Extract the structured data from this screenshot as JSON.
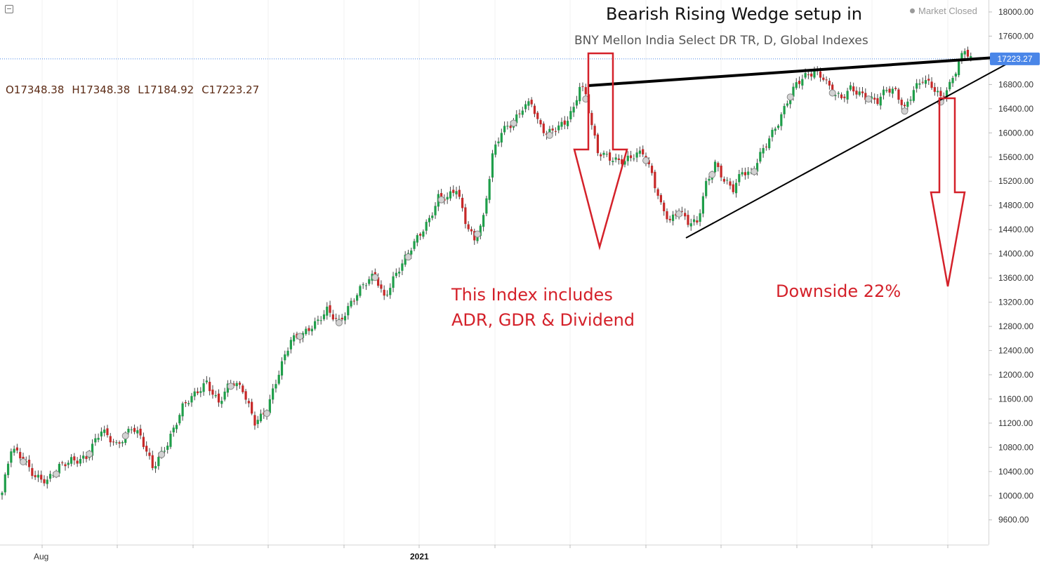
{
  "header": {
    "title": "Bearish Rising Wedge setup in",
    "subtitle": "BNY Mellon India Select DR TR, D, Global Indexes",
    "market_status": "Market Closed"
  },
  "ohlc": {
    "open": "O17348.38",
    "high": "H17348.38",
    "low": "L17184.92",
    "close": "C17223.27"
  },
  "price_label": "17223.27",
  "annotations": {
    "index_note": [
      "This Index includes",
      "ADR, GDR & Dividend"
    ],
    "downside": "Downside 22%"
  },
  "colors": {
    "up": "#1f9e4a",
    "down": "#c62828",
    "annotation": "#d4212a",
    "last_price": "#4a86e8"
  },
  "chart_data": {
    "type": "candlestick",
    "title": "Bearish Rising Wedge setup in",
    "subtitle": "BNY Mellon India Select DR TR, D, Global Indexes",
    "x_tick_labels": [
      "Aug",
      "2021"
    ],
    "y_ticks": [
      9600,
      10000,
      10400,
      10800,
      11200,
      11600,
      12000,
      12400,
      12800,
      13200,
      13600,
      14000,
      14400,
      14800,
      15200,
      15600,
      16000,
      16400,
      16800,
      17200,
      17600,
      18000
    ],
    "y_tick_labels": [
      "9600.00",
      "10000.00",
      "10400.00",
      "10800.00",
      "11200.00",
      "11600.00",
      "12000.00",
      "12400.00",
      "12800.00",
      "13200.00",
      "13600.00",
      "14000.00",
      "14400.00",
      "14800.00",
      "15200.00",
      "15600.00",
      "16000.00",
      "16400.00",
      "16800.00",
      "17200.00",
      "17600.00",
      "18000.00"
    ],
    "ylim": [
      9300,
      18180
    ],
    "last_price": 17223.27,
    "price_path": [
      [
        0,
        10050
      ],
      [
        3,
        10750
      ],
      [
        7,
        10600
      ],
      [
        11,
        10350
      ],
      [
        15,
        10240
      ],
      [
        19,
        10450
      ],
      [
        23,
        10600
      ],
      [
        28,
        10650
      ],
      [
        33,
        11050
      ],
      [
        38,
        10850
      ],
      [
        43,
        11150
      ],
      [
        46,
        10950
      ],
      [
        50,
        10450
      ],
      [
        55,
        10900
      ],
      [
        60,
        11450
      ],
      [
        64,
        11650
      ],
      [
        68,
        11900
      ],
      [
        72,
        11550
      ],
      [
        76,
        11850
      ],
      [
        80,
        11750
      ],
      [
        84,
        11250
      ],
      [
        88,
        11400
      ],
      [
        92,
        12000
      ],
      [
        96,
        12600
      ],
      [
        100,
        12700
      ],
      [
        105,
        12850
      ],
      [
        108,
        13050
      ],
      [
        112,
        12900
      ],
      [
        116,
        13200
      ],
      [
        120,
        13450
      ],
      [
        124,
        13650
      ],
      [
        127,
        13300
      ],
      [
        130,
        13600
      ],
      [
        134,
        13900
      ],
      [
        138,
        14250
      ],
      [
        142,
        14600
      ],
      [
        145,
        14950
      ],
      [
        148,
        14900
      ],
      [
        151,
        15050
      ],
      [
        154,
        14550
      ],
      [
        157,
        14250
      ],
      [
        160,
        14600
      ],
      [
        163,
        15600
      ],
      [
        166,
        16000
      ],
      [
        170,
        16200
      ],
      [
        173,
        16450
      ],
      [
        176,
        16500
      ],
      [
        178,
        16150
      ],
      [
        181,
        15950
      ],
      [
        184,
        16100
      ],
      [
        187,
        16200
      ],
      [
        190,
        16400
      ],
      [
        192,
        16750
      ],
      [
        194,
        16600
      ],
      [
        196,
        16100
      ],
      [
        198,
        15700
      ],
      [
        201,
        15650
      ],
      [
        204,
        15550
      ],
      [
        207,
        15500
      ],
      [
        210,
        15600
      ],
      [
        213,
        15700
      ],
      [
        216,
        15350
      ],
      [
        219,
        14800
      ],
      [
        222,
        14500
      ],
      [
        225,
        14700
      ],
      [
        228,
        14550
      ],
      [
        231,
        14550
      ],
      [
        234,
        15150
      ],
      [
        237,
        15450
      ],
      [
        240,
        15200
      ],
      [
        243,
        15100
      ],
      [
        246,
        15400
      ],
      [
        249,
        15300
      ],
      [
        252,
        15600
      ],
      [
        255,
        15900
      ],
      [
        258,
        16200
      ],
      [
        261,
        16550
      ],
      [
        264,
        16800
      ],
      [
        267,
        16900
      ],
      [
        270,
        17000
      ],
      [
        273,
        16950
      ],
      [
        276,
        16700
      ],
      [
        279,
        16550
      ],
      [
        282,
        16700
      ],
      [
        285,
        16650
      ],
      [
        288,
        16600
      ],
      [
        291,
        16550
      ],
      [
        294,
        16700
      ],
      [
        297,
        16650
      ],
      [
        300,
        16400
      ],
      [
        303,
        16750
      ],
      [
        306,
        16900
      ],
      [
        309,
        16750
      ],
      [
        312,
        16550
      ],
      [
        315,
        16800
      ],
      [
        318,
        17200
      ],
      [
        320,
        17400
      ],
      [
        322,
        17223
      ]
    ],
    "wedge_upper": [
      [
        838,
        122
      ],
      [
        1446,
        80
      ]
    ],
    "wedge_lower": [
      [
        977,
        339
      ],
      [
        1436,
        90
      ]
    ]
  }
}
